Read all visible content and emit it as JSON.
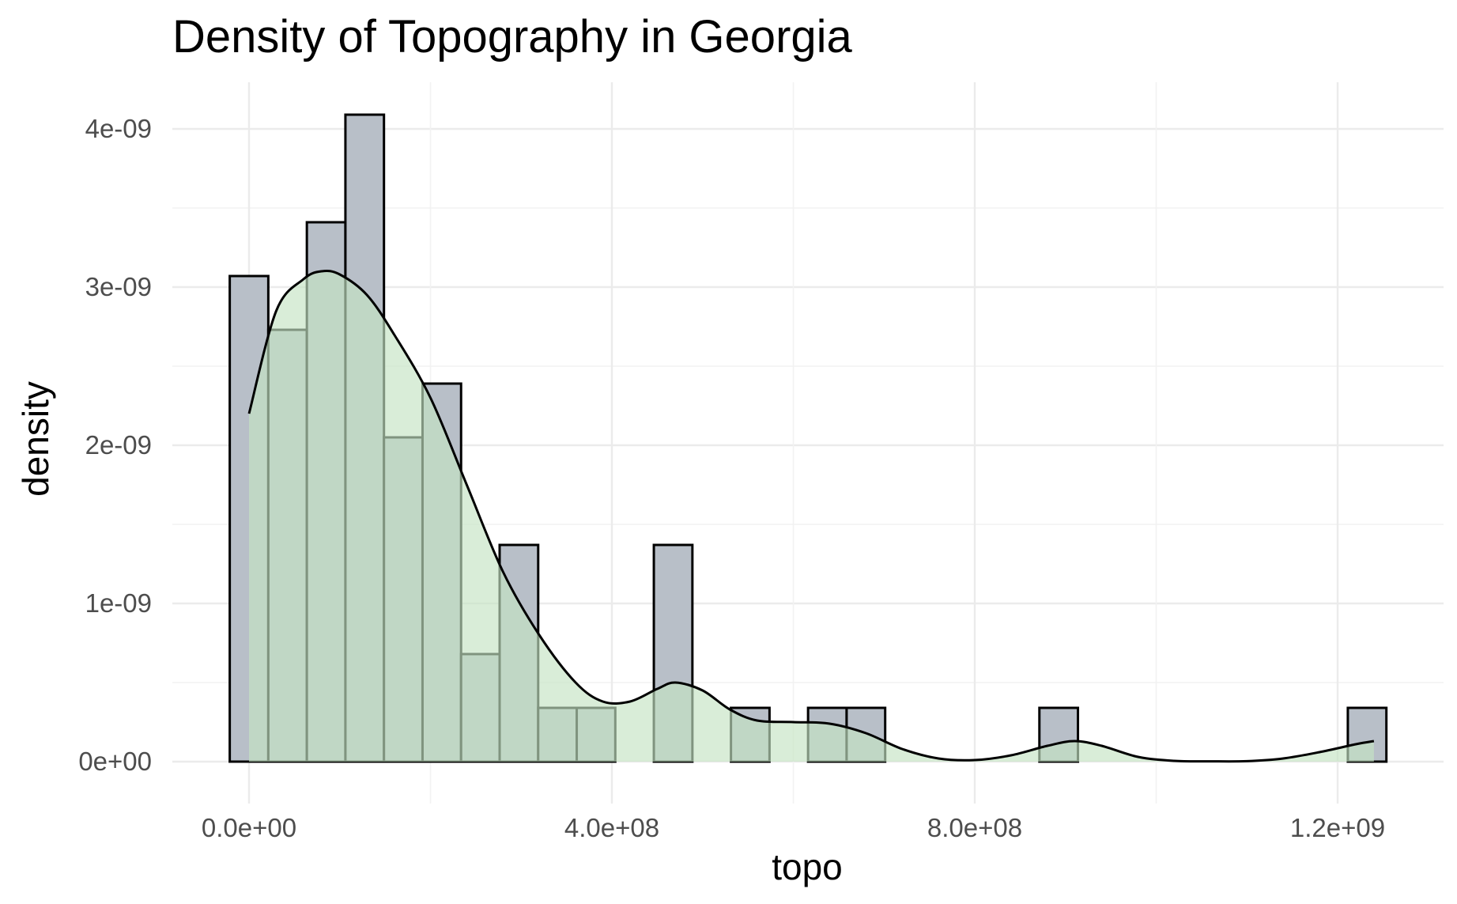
{
  "chart_data": {
    "type": "bar",
    "title": "Density of Topography in Georgia",
    "xlabel": "topo",
    "ylabel": "density",
    "xlim": [
      -100000000,
      1300000000
    ],
    "ylim": [
      -1.7e-09,
      4.45e-09
    ],
    "x_ticks": [
      {
        "value": 0,
        "label": "0.0e+00"
      },
      {
        "value": 400000000,
        "label": "4.0e+08"
      },
      {
        "value": 800000000,
        "label": "8.0e+08"
      },
      {
        "value": 1200000000,
        "label": "1.2e+09"
      }
    ],
    "y_ticks": [
      {
        "value": 0,
        "label": "0e+00"
      },
      {
        "value": 1e-09,
        "label": "1e-09"
      },
      {
        "value": 2e-09,
        "label": "2e-09"
      },
      {
        "value": 3e-09,
        "label": "3e-09"
      },
      {
        "value": 4e-09,
        "label": "4e-09"
      }
    ],
    "grid": true,
    "histogram": {
      "bin_width": 42500000,
      "fill": "#b8bfc8",
      "stroke": "#000000",
      "bins": [
        {
          "x": 0,
          "value": 3.07e-09
        },
        {
          "x": 42500000,
          "value": 2.73e-09
        },
        {
          "x": 85000000,
          "value": 3.41e-09
        },
        {
          "x": 127500000,
          "value": 4.09e-09
        },
        {
          "x": 170000000,
          "value": 2.05e-09
        },
        {
          "x": 212500000,
          "value": 2.39e-09
        },
        {
          "x": 255000000,
          "value": 6.8e-10
        },
        {
          "x": 297500000,
          "value": 1.37e-09
        },
        {
          "x": 340000000,
          "value": 3.4e-10
        },
        {
          "x": 382500000,
          "value": 3.4e-10
        },
        {
          "x": 425000000,
          "value": 0
        },
        {
          "x": 467500000,
          "value": 1.37e-09
        },
        {
          "x": 510000000,
          "value": 0
        },
        {
          "x": 552500000,
          "value": 3.4e-10
        },
        {
          "x": 595000000,
          "value": 0
        },
        {
          "x": 637500000,
          "value": 3.4e-10
        },
        {
          "x": 680000000,
          "value": 3.4e-10
        },
        {
          "x": 722500000,
          "value": 0
        },
        {
          "x": 765000000,
          "value": 0
        },
        {
          "x": 807500000,
          "value": 0
        },
        {
          "x": 850000000,
          "value": 0
        },
        {
          "x": 892500000,
          "value": 3.4e-10
        },
        {
          "x": 935000000,
          "value": 0
        },
        {
          "x": 977500000,
          "value": 0
        },
        {
          "x": 1020000000,
          "value": 0
        },
        {
          "x": 1062500000,
          "value": 0
        },
        {
          "x": 1105000000,
          "value": 0
        },
        {
          "x": 1147500000,
          "value": 0
        },
        {
          "x": 1190000000,
          "value": 0
        },
        {
          "x": 1232500000,
          "value": 3.4e-10
        }
      ]
    },
    "density": {
      "fill": "#c5e3c3",
      "fill_opacity": 0.65,
      "stroke": "#000000",
      "x": [
        0,
        30000000,
        60000000,
        80000000,
        100000000,
        130000000,
        160000000,
        200000000,
        240000000,
        280000000,
        320000000,
        360000000,
        390000000,
        420000000,
        450000000,
        470000000,
        500000000,
        530000000,
        560000000,
        600000000,
        640000000,
        680000000,
        720000000,
        760000000,
        800000000,
        840000000,
        880000000,
        910000000,
        940000000,
        980000000,
        1020000000,
        1060000000,
        1100000000,
        1140000000,
        1180000000,
        1220000000,
        1240000000
      ],
      "y": [
        2.2e-09,
        2.85e-09,
        3.05e-09,
        3.1e-09,
        3.08e-09,
        2.95e-09,
        2.7e-09,
        2.3e-09,
        1.75e-09,
        1.2e-09,
        8e-10,
        5e-10,
        3.8e-10,
        3.8e-10,
        4.6e-10,
        5e-10,
        4.5e-10,
        3.3e-10,
        2.6e-10,
        2.5e-10,
        2.4e-10,
        1.8e-10,
        8e-11,
        2e-11,
        1e-11,
        4e-11,
        1e-10,
        1.3e-10,
        1e-10,
        3e-11,
        5e-12,
        2e-12,
        3e-12,
        2e-11,
        6e-11,
        1.1e-10,
        1.3e-10
      ]
    }
  }
}
